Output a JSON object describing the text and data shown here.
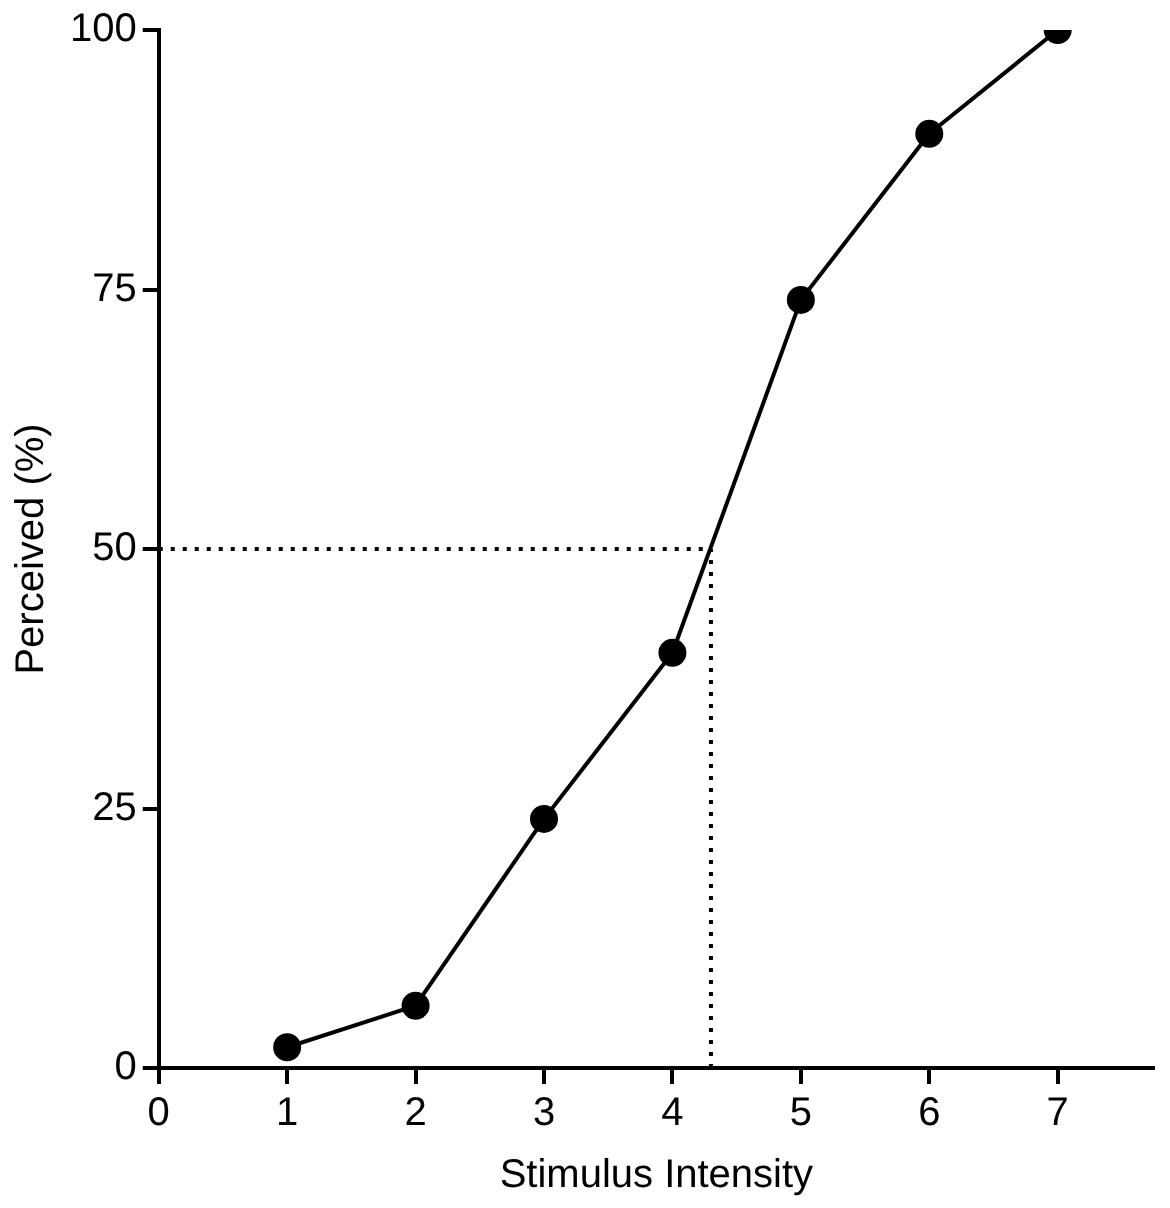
{
  "chart_data": {
    "type": "line",
    "xlabel": "Stimulus Intensity",
    "ylabel": "Perceived (%)",
    "x": [
      1,
      2,
      3,
      4,
      5,
      6,
      7
    ],
    "values": [
      2,
      6,
      24,
      40,
      74,
      90,
      100
    ],
    "color": "#000000",
    "xlim": [
      0,
      7.75
    ],
    "xticks": [
      0,
      1,
      2,
      3,
      4,
      5,
      6,
      7
    ],
    "ylim": [
      0,
      100
    ],
    "yticks": [
      0,
      25,
      50,
      75,
      100
    ],
    "grid": false,
    "legend": false,
    "marker": "circle",
    "line_style": "solid",
    "ref_lines": [
      {
        "axis": "y",
        "value": 50,
        "line_style": "dotted",
        "color": "#000000"
      },
      {
        "axis": "x",
        "value": 4.3,
        "line_style": "dotted",
        "color": "#000000"
      }
    ]
  }
}
